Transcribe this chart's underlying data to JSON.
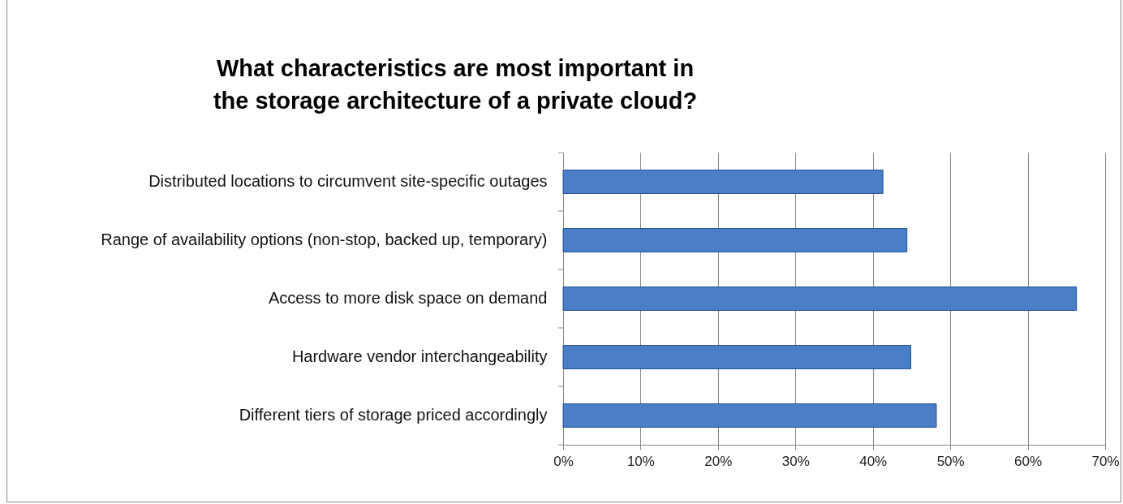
{
  "chart_data": {
    "type": "bar",
    "orientation": "horizontal",
    "title": "What characteristics are most important in the storage architecture of a private cloud?",
    "categories": [
      "Distributed locations to circumvent site-specific outages",
      "Range of availability options (non-stop, backed up, temporary)",
      "Access to more disk space on demand",
      "Hardware vendor interchangeability",
      "Different tiers of storage priced accordingly"
    ],
    "values": [
      41.3,
      44.4,
      66.3,
      44.9,
      48.2
    ],
    "color": "#4a7fc8",
    "xlim": [
      0,
      70
    ],
    "xticks": [
      {
        "value": 0,
        "label": "0%"
      },
      {
        "value": 10,
        "label": "10%"
      },
      {
        "value": 20,
        "label": "20%"
      },
      {
        "value": 30,
        "label": "30%"
      },
      {
        "value": 40,
        "label": "40%"
      },
      {
        "value": 50,
        "label": "50%"
      },
      {
        "value": 60,
        "label": "60%"
      },
      {
        "value": 70,
        "label": "70%"
      }
    ],
    "grid": "x"
  }
}
